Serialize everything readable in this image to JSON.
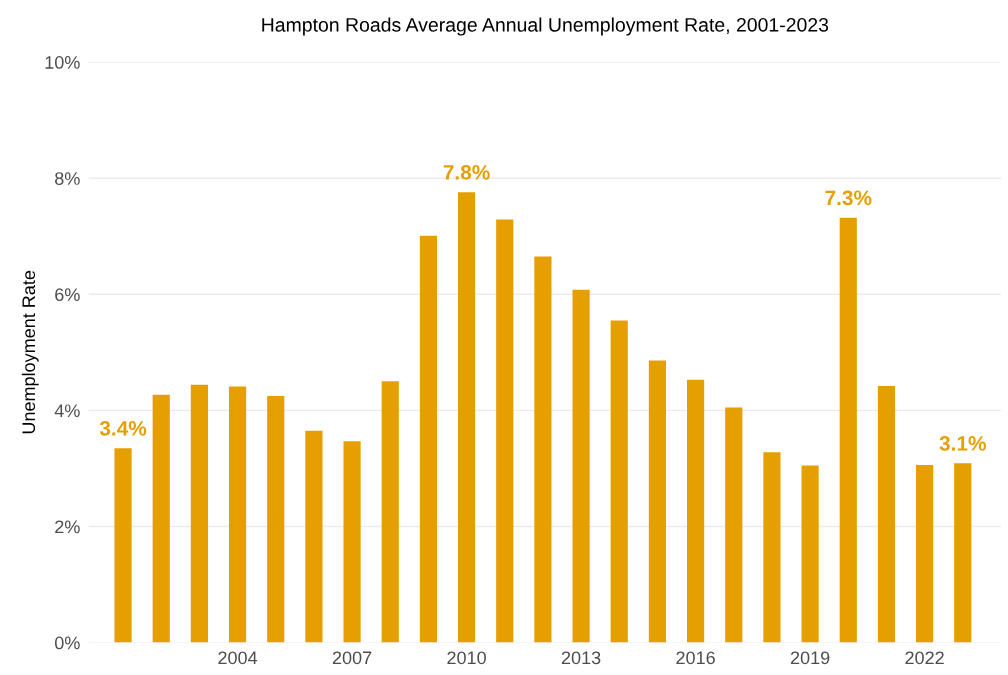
{
  "chart_data": {
    "type": "bar",
    "title": "Hampton Roads Average Annual Unemployment Rate, 2001-2023",
    "ylabel": "Unemployment Rate",
    "x": [
      2001,
      2002,
      2003,
      2004,
      2005,
      2006,
      2007,
      2008,
      2009,
      2010,
      2011,
      2012,
      2013,
      2014,
      2015,
      2016,
      2017,
      2018,
      2019,
      2020,
      2021,
      2022,
      2023
    ],
    "values": [
      3.35,
      4.27,
      4.44,
      4.41,
      4.25,
      3.65,
      3.47,
      4.5,
      7.01,
      7.76,
      7.29,
      6.65,
      6.08,
      5.55,
      4.86,
      4.53,
      4.05,
      3.28,
      3.05,
      7.32,
      4.42,
      3.06,
      3.09
    ],
    "value_labels": [
      "3.4%",
      null,
      null,
      null,
      null,
      null,
      null,
      null,
      null,
      "7.8%",
      null,
      null,
      null,
      null,
      null,
      null,
      null,
      null,
      null,
      "7.3%",
      null,
      null,
      "3.1%"
    ],
    "color": "#e69f00",
    "xlim": [
      2000.1,
      2024
    ],
    "xticks": [
      2004,
      2007,
      2010,
      2013,
      2016,
      2019,
      2022
    ],
    "ylim": [
      0,
      10
    ],
    "yticks": [
      {
        "value": 0,
        "label": "0%"
      },
      {
        "value": 2,
        "label": "2%"
      },
      {
        "value": 4,
        "label": "4%"
      },
      {
        "value": 6,
        "label": "6%"
      },
      {
        "value": 8,
        "label": "8%"
      },
      {
        "value": 10,
        "label": "10%"
      }
    ],
    "grid": "y"
  }
}
